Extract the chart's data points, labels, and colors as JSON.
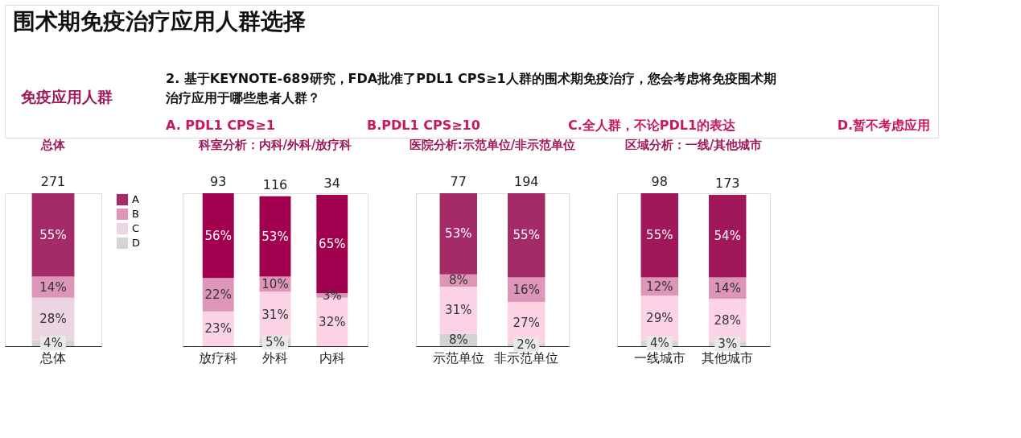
{
  "chart_data": [
    {
      "type": "bar",
      "stacked": true,
      "title": "总体",
      "legend": "right",
      "annotations": [
        "围术期免疫治疗应用人群选择",
        "免疫应用人群",
        "2. 基于KEYNOTE-689研究，FDA批准了PDL1 CPS≥1人群的围术期免疫治疗，您会考虑将免疫围术期",
        "治疗应用于哪些患者人群？",
        "A. PDL1 CPS≥1",
        "B.PDL1 CPS≥10",
        "C.全人群，不论PDL1的表达",
        "D.暂不考虑应用",
        "271"
      ],
      "categories": [
        "总体"
      ],
      "series": [
        {
          "name": "D",
          "color": "#d4d4d4",
          "values": [
            4
          ],
          "value_labels": [
            "4%"
          ]
        },
        {
          "name": "C",
          "color": "#ecd4e0",
          "values": [
            28
          ],
          "value_labels": [
            "28%"
          ]
        },
        {
          "name": "B",
          "color": "#dd95b8",
          "values": [
            14
          ],
          "value_labels": [
            "14%"
          ]
        },
        {
          "name": "A",
          "color": "#a52a68",
          "values": [
            55
          ],
          "value_labels": [
            "55%"
          ]
        }
      ]
    },
    {
      "type": "bar",
      "stacked": true,
      "title": "科室分析：内科/外科/放疗科",
      "categories": [
        "放疗科",
        "外科",
        "内科"
      ],
      "annotations": [
        "93",
        "116",
        "34"
      ],
      "series": [
        {
          "color": "#d4d4d4",
          "values": [
            null,
            5,
            null
          ],
          "value_labels": [
            null,
            "5%",
            null
          ]
        },
        {
          "color": "#fbd3e4",
          "values": [
            23,
            31,
            32
          ],
          "value_labels": [
            "23%",
            "31%",
            "32%"
          ]
        },
        {
          "color": "#dd95b8",
          "values": [
            22,
            10,
            3
          ],
          "value_labels": [
            "22%",
            "10%",
            "3%"
          ]
        },
        {
          "color": "#a0004d",
          "values": [
            56,
            53,
            65
          ],
          "value_labels": [
            "56%",
            "53%",
            "65%"
          ]
        }
      ]
    },
    {
      "type": "bar",
      "stacked": true,
      "title": "医院分析:示范单位/非示范单位",
      "categories": [
        "示范单位",
        "非示范单位"
      ],
      "annotations": [
        "77",
        "194"
      ],
      "series": [
        {
          "color": "#d4d4d4",
          "values": [
            8,
            2
          ],
          "value_labels": [
            "8%",
            "2%"
          ]
        },
        {
          "color": "#fbd3e4",
          "values": [
            31,
            27
          ],
          "value_labels": [
            "31%",
            "27%"
          ]
        },
        {
          "color": "#dd95b8",
          "values": [
            8,
            16
          ],
          "value_labels": [
            "8%",
            "16%"
          ]
        },
        {
          "color": "#a52a68",
          "values": [
            53,
            55
          ],
          "value_labels": [
            "53%",
            "55%"
          ]
        }
      ]
    },
    {
      "type": "bar",
      "stacked": true,
      "title": "区域分析：一线/其他城市",
      "categories": [
        "一线城市",
        "其他城市"
      ],
      "annotations": [
        "98",
        "173"
      ],
      "series": [
        {
          "color": "#d4d4d4",
          "values": [
            4,
            3
          ],
          "value_labels": [
            "4%",
            "3%"
          ]
        },
        {
          "color": "#fbd3e4",
          "values": [
            29,
            28
          ],
          "value_labels": [
            "29%",
            "28%"
          ]
        },
        {
          "color": "#dd95b8",
          "values": [
            12,
            14
          ],
          "value_labels": [
            "12%",
            "14%"
          ]
        },
        {
          "color": "#a0185a",
          "values": [
            55,
            54
          ],
          "value_labels": [
            "55%",
            "54%"
          ]
        }
      ]
    }
  ]
}
